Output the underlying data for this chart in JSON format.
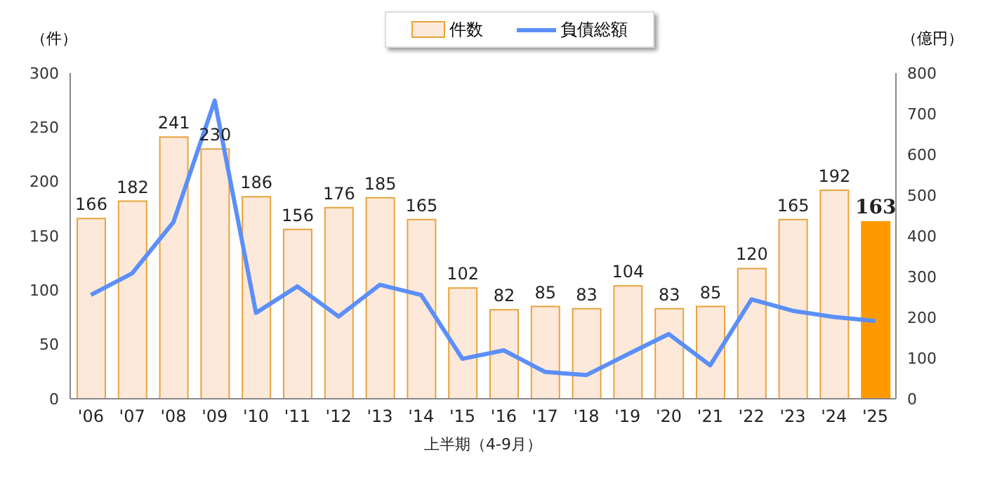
{
  "chart_data": {
    "type": "bar",
    "xlabel": "上半期（4-9月）",
    "ylabel": "（件）",
    "y2label": "（億円）",
    "categories": [
      "'06",
      "'07",
      "'08",
      "'09",
      "'10",
      "'11",
      "'12",
      "'13",
      "'14",
      "'15",
      "'16",
      "'17",
      "'18",
      "'19",
      "'20",
      "'21",
      "'22",
      "'23",
      "'24",
      "'25"
    ],
    "series": [
      {
        "name": "件数",
        "value_labels": [
          "166",
          "182",
          "241",
          "230",
          "186",
          "156",
          "176",
          "185",
          "165",
          "102",
          "82",
          "85",
          "83",
          "104",
          "83",
          "85",
          "120",
          "165",
          "192",
          "163"
        ],
        "color": "#fde9d9",
        "colors": [
          "#fde9d9",
          "#fde9d9",
          "#fde9d9",
          "#fde9d9",
          "#fde9d9",
          "#fde9d9",
          "#fde9d9",
          "#fde9d9",
          "#fde9d9",
          "#fde9d9",
          "#fde9d9",
          "#fde9d9",
          "#fde9d9",
          "#fde9d9",
          "#fde9d9",
          "#fde9d9",
          "#fde9d9",
          "#fde9d9",
          "#fde9d9",
          "#ff9900"
        ],
        "values": [
          166,
          182,
          241,
          230,
          186,
          156,
          176,
          185,
          165,
          102,
          82,
          85,
          83,
          104,
          83,
          85,
          120,
          165,
          192,
          163
        ]
      },
      {
        "name": "負債総額",
        "type": "line",
        "axis": "y2",
        "color": "#5b8ff9",
        "values": [
          255,
          308,
          434,
          732,
          211,
          276,
          202,
          280,
          255,
          98,
          119,
          66,
          58,
          109,
          159,
          82,
          244,
          216,
          201,
          191
        ]
      }
    ],
    "ylim": [
      0,
      300
    ],
    "yticks": [
      0,
      50,
      100,
      150,
      200,
      250,
      300
    ],
    "y2lim": [
      0,
      800
    ],
    "y2ticks": [
      0,
      100,
      200,
      300,
      400,
      500,
      600,
      700,
      800
    ],
    "grid": false,
    "legend": "top",
    "marker": "none"
  }
}
